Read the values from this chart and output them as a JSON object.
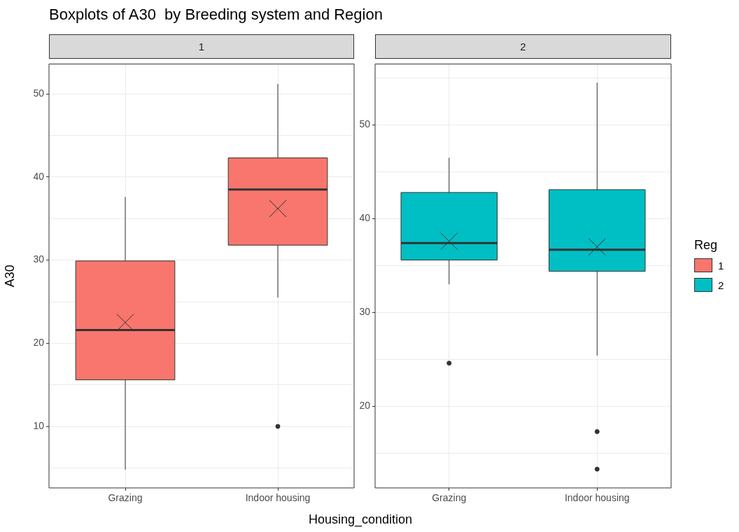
{
  "chart_data": [
    {
      "type": "box",
      "title": "Boxplots of A30  by Breeding system and Region",
      "subtitle": "1",
      "xlabel": "Housing_condition",
      "ylabel": "A30",
      "categories": [
        "Grazing",
        "Indoor housing"
      ],
      "ylim": [
        2.6,
        53.6
      ],
      "yticks": [
        {
          "value": 5,
          "label": null
        },
        10,
        {
          "value": 15,
          "label": null
        },
        20,
        {
          "value": 25,
          "label": null
        },
        30,
        {
          "value": 35,
          "label": null
        },
        40,
        {
          "value": 45,
          "label": null
        },
        50
      ],
      "grid": true,
      "legend": "right",
      "marker": "circle",
      "series": [
        {
          "name": "1",
          "color": "#f8766d",
          "boxes": [
            {
              "low": 4.8,
              "q1": 15.6,
              "median": 21.6,
              "q3": 29.9,
              "high": 37.6,
              "mean": 22.5
            },
            {
              "low": 25.5,
              "q1": 31.8,
              "median": 38.5,
              "q3": 42.3,
              "high": 51.2,
              "mean": 36.2,
              "outliers": [
                10
              ]
            }
          ]
        }
      ]
    },
    {
      "type": "box",
      "subtitle": "2",
      "legend_title": "Reg",
      "categories": [
        "Grazing",
        "Indoor housing"
      ],
      "ylim": [
        11.3,
        56.5
      ],
      "yticks": [
        {
          "value": 15,
          "label": null
        },
        20,
        {
          "value": 25,
          "label": null
        },
        30,
        {
          "value": 35,
          "label": null
        },
        40,
        {
          "value": 45,
          "label": null
        },
        50,
        {
          "value": 55,
          "label": null
        }
      ],
      "grid": true,
      "legend": "right",
      "marker": "circle",
      "series": [
        {
          "name": "2",
          "color": "#00bfc4",
          "boxes": [
            {
              "low": 33,
              "q1": 35.6,
              "median": 37.4,
              "q3": 42.8,
              "high": 46.5,
              "mean": 37.6,
              "outliers": [
                24.6
              ]
            },
            {
              "low": 25.4,
              "q1": 34.4,
              "median": 36.7,
              "q3": 43.1,
              "high": 54.5,
              "mean": 37,
              "outliers": [
                17.3,
                13.3
              ]
            }
          ]
        }
      ]
    }
  ]
}
